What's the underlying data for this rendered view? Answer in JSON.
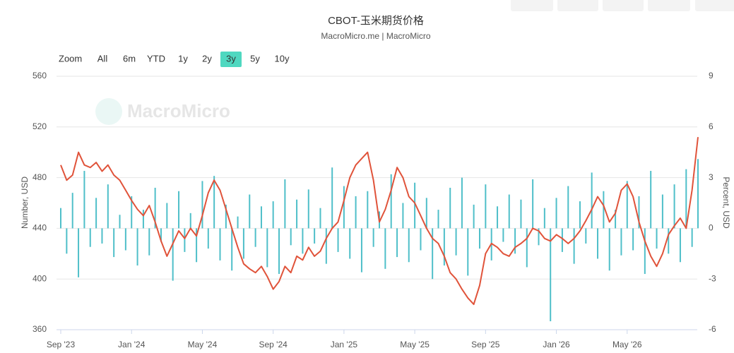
{
  "chart_data": {
    "type": "combo",
    "title": "CBOT-玉米期货价格",
    "subtitle": "MacroMicro.me | MacroMicro",
    "watermark": "MacroMicro",
    "zoom": {
      "label": "Zoom",
      "buttons": [
        "All",
        "6m",
        "YTD",
        "1y",
        "2y",
        "3y",
        "5y",
        "10y"
      ],
      "active": 5
    },
    "y_label": "Number, USD",
    "y2_label": "Percent, USD",
    "ylim": [
      360,
      560
    ],
    "yticks": [
      360,
      400,
      440,
      480,
      520,
      560
    ],
    "y2lim": [
      -6,
      9
    ],
    "y2ticks": [
      -6,
      -3,
      0,
      3,
      6,
      9
    ],
    "grid": true,
    "categories": [
      "Sep '23",
      null,
      null,
      null,
      null,
      null,
      null,
      null,
      null,
      null,
      null,
      null,
      "Jan '24",
      null,
      null,
      null,
      null,
      null,
      null,
      null,
      null,
      null,
      null,
      null,
      "May '24",
      null,
      null,
      null,
      null,
      null,
      null,
      null,
      null,
      null,
      null,
      null,
      "Sep '24",
      null,
      null,
      null,
      null,
      null,
      null,
      null,
      null,
      null,
      null,
      null,
      "Jan '25",
      null,
      null,
      null,
      null,
      null,
      null,
      null,
      null,
      null,
      null,
      null,
      "May '25",
      null,
      null,
      null,
      null,
      null,
      null,
      null,
      null,
      null,
      null,
      null,
      "Sep '25",
      null,
      null,
      null,
      null,
      null,
      null,
      null,
      null,
      null,
      null,
      null,
      "Jan '26",
      null,
      null,
      null,
      null,
      null,
      null,
      null,
      null,
      null,
      null,
      null,
      "May '26",
      null,
      null,
      null,
      null,
      null,
      null,
      null,
      null,
      null,
      null,
      null,
      null
    ],
    "series": [
      {
        "name": "Percent",
        "type": "bar",
        "axis": "y2",
        "color": "#4fbfc9",
        "values": [
          1.2,
          -1.5,
          2.1,
          -2.9,
          3.4,
          -1.1,
          1.8,
          -0.9,
          2.6,
          -1.7,
          0.8,
          -1.3,
          1.9,
          -2.2,
          1.1,
          -1.6,
          2.4,
          -0.8,
          1.5,
          -3.1,
          2.2,
          -1.4,
          0.9,
          -2.0,
          2.8,
          -1.2,
          3.1,
          -1.9,
          1.4,
          -2.5,
          0.7,
          -1.8,
          2.0,
          -1.1,
          1.3,
          -2.3,
          1.6,
          -2.7,
          2.9,
          -1.0,
          1.7,
          -1.5,
          2.3,
          -0.9,
          1.2,
          -2.1,
          3.6,
          -1.4,
          2.5,
          -1.8,
          1.9,
          -2.6,
          2.2,
          -1.1,
          1.0,
          -2.4,
          3.2,
          -1.7,
          1.5,
          -2.0,
          2.7,
          -1.3,
          1.8,
          -3.0,
          1.1,
          -2.2,
          2.4,
          -1.6,
          3.0,
          -2.8,
          1.4,
          -1.2,
          2.6,
          -1.9,
          1.3,
          -0.8,
          2.0,
          -1.5,
          1.7,
          -2.3,
          2.9,
          -1.0,
          1.2,
          -5.5,
          1.8,
          -1.4,
          2.5,
          -2.1,
          1.6,
          -0.9,
          3.3,
          -1.8,
          2.2,
          -2.5,
          1.1,
          -1.6,
          2.8,
          -1.3,
          1.9,
          -2.7,
          3.4,
          -1.2,
          2.0,
          -1.5,
          2.6,
          -2.0,
          3.5,
          -1.1,
          4.1
        ]
      },
      {
        "name": "Price",
        "type": "line",
        "axis": "y",
        "color": "#e0533a",
        "values": [
          490,
          478,
          482,
          500,
          490,
          488,
          492,
          485,
          490,
          482,
          478,
          470,
          462,
          455,
          450,
          458,
          445,
          430,
          418,
          428,
          438,
          432,
          440,
          434,
          450,
          468,
          478,
          470,
          455,
          440,
          425,
          412,
          408,
          405,
          410,
          402,
          392,
          398,
          410,
          405,
          418,
          415,
          425,
          418,
          422,
          432,
          440,
          445,
          462,
          480,
          490,
          495,
          500,
          478,
          445,
          455,
          470,
          488,
          480,
          465,
          460,
          450,
          440,
          432,
          428,
          418,
          405,
          400,
          392,
          385,
          380,
          395,
          420,
          428,
          425,
          420,
          418,
          425,
          428,
          432,
          440,
          438,
          432,
          430,
          435,
          432,
          428,
          432,
          438,
          446,
          455,
          465,
          458,
          445,
          452,
          470,
          475,
          465,
          445,
          430,
          418,
          410,
          420,
          435,
          442,
          448,
          440,
          470,
          512
        ]
      }
    ]
  }
}
